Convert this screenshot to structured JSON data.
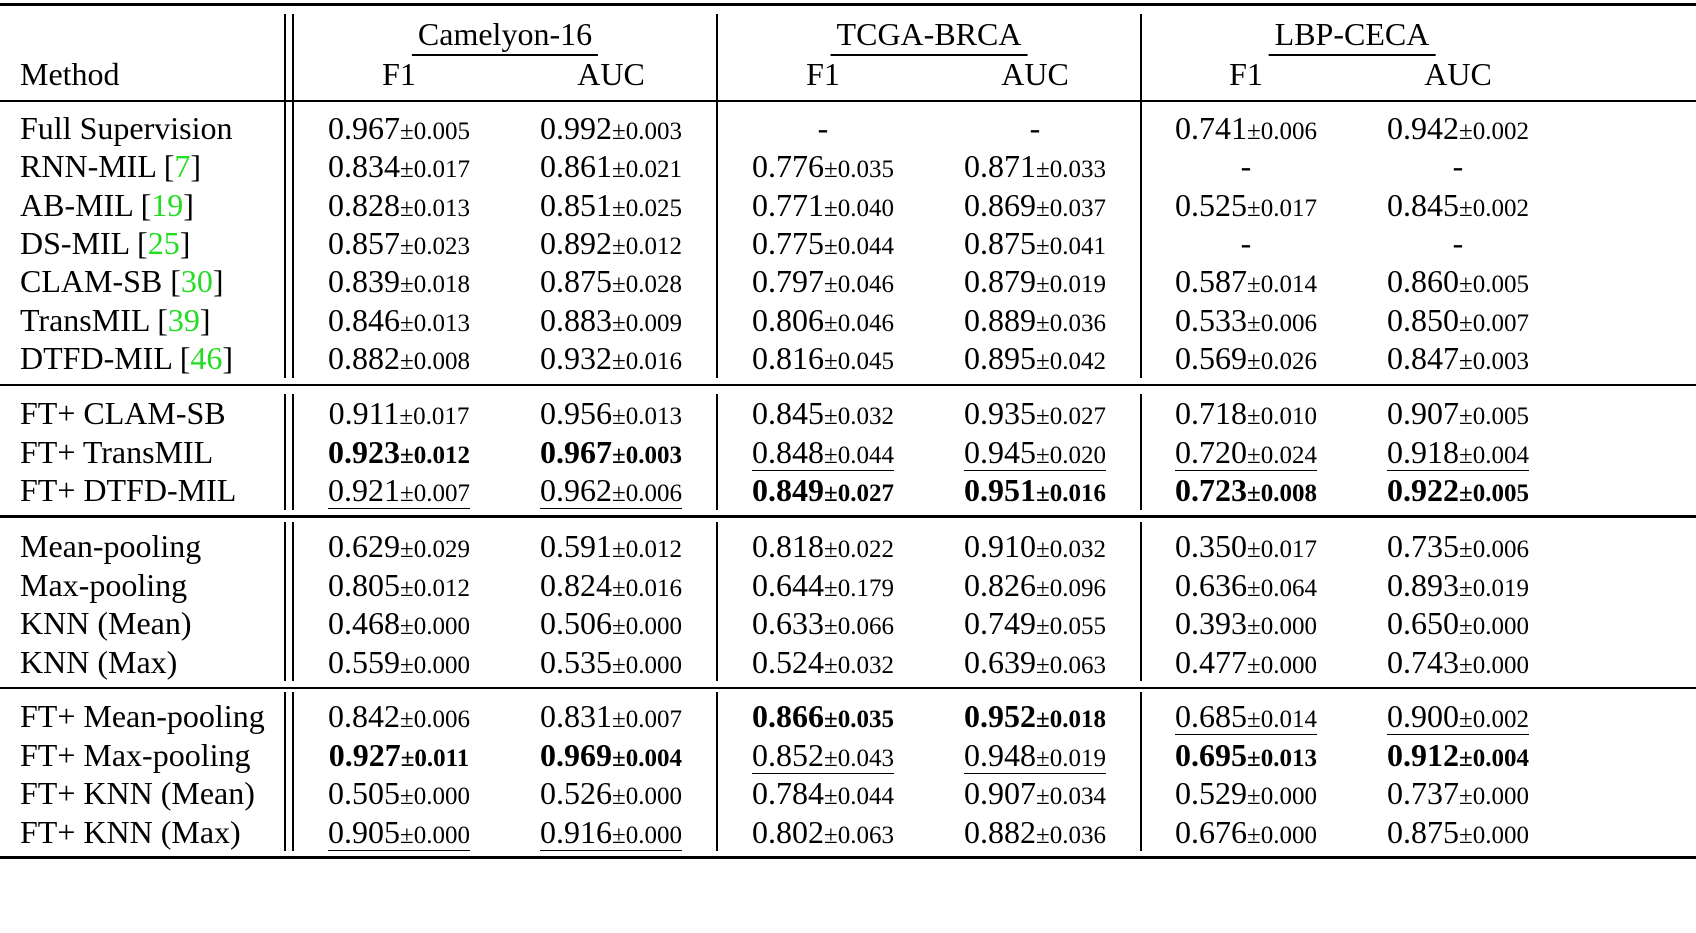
{
  "header": {
    "method_label": "Method",
    "datasets": [
      "Camelyon-16",
      "TCGA-BRCA",
      "LBP-CECA"
    ],
    "metrics": [
      "F1",
      "AUC"
    ]
  },
  "groups": [
    {
      "rows": [
        {
          "method": "Full Supervision",
          "ref": "",
          "cells": [
            {
              "v": "0.967",
              "sd": "±0.005"
            },
            {
              "v": "0.992",
              "sd": "±0.003"
            },
            {
              "v": "-",
              "sd": ""
            },
            {
              "v": "-",
              "sd": ""
            },
            {
              "v": "0.741",
              "sd": "±0.006"
            },
            {
              "v": "0.942",
              "sd": "±0.002"
            }
          ]
        },
        {
          "method": "RNN-MIL [",
          "ref": "7",
          "cells": [
            {
              "v": "0.834",
              "sd": "±0.017"
            },
            {
              "v": "0.861",
              "sd": "±0.021"
            },
            {
              "v": "0.776",
              "sd": "±0.035"
            },
            {
              "v": "0.871",
              "sd": "±0.033"
            },
            {
              "v": "-",
              "sd": ""
            },
            {
              "v": "-",
              "sd": ""
            }
          ]
        },
        {
          "method": "AB-MIL [",
          "ref": "19",
          "cells": [
            {
              "v": "0.828",
              "sd": "±0.013"
            },
            {
              "v": "0.851",
              "sd": "±0.025"
            },
            {
              "v": "0.771",
              "sd": "±0.040"
            },
            {
              "v": "0.869",
              "sd": "±0.037"
            },
            {
              "v": "0.525",
              "sd": "±0.017"
            },
            {
              "v": "0.845",
              "sd": "±0.002"
            }
          ]
        },
        {
          "method": "DS-MIL [",
          "ref": "25",
          "cells": [
            {
              "v": "0.857",
              "sd": "±0.023"
            },
            {
              "v": "0.892",
              "sd": "±0.012"
            },
            {
              "v": "0.775",
              "sd": "±0.044"
            },
            {
              "v": "0.875",
              "sd": "±0.041"
            },
            {
              "v": "-",
              "sd": ""
            },
            {
              "v": "-",
              "sd": ""
            }
          ]
        },
        {
          "method": "CLAM-SB [",
          "ref": "30",
          "cells": [
            {
              "v": "0.839",
              "sd": "±0.018"
            },
            {
              "v": "0.875",
              "sd": "±0.028"
            },
            {
              "v": "0.797",
              "sd": "±0.046"
            },
            {
              "v": "0.879",
              "sd": "±0.019"
            },
            {
              "v": "0.587",
              "sd": "±0.014"
            },
            {
              "v": "0.860",
              "sd": "±0.005"
            }
          ]
        },
        {
          "method": "TransMIL [",
          "ref": "39",
          "cells": [
            {
              "v": "0.846",
              "sd": "±0.013"
            },
            {
              "v": "0.883",
              "sd": "±0.009"
            },
            {
              "v": "0.806",
              "sd": "±0.046"
            },
            {
              "v": "0.889",
              "sd": "±0.036"
            },
            {
              "v": "0.533",
              "sd": "±0.006"
            },
            {
              "v": "0.850",
              "sd": "±0.007"
            }
          ]
        },
        {
          "method": "DTFD-MIL [",
          "ref": "46",
          "cells": [
            {
              "v": "0.882",
              "sd": "±0.008"
            },
            {
              "v": "0.932",
              "sd": "±0.016"
            },
            {
              "v": "0.816",
              "sd": "±0.045"
            },
            {
              "v": "0.895",
              "sd": "±0.042"
            },
            {
              "v": "0.569",
              "sd": "±0.026"
            },
            {
              "v": "0.847",
              "sd": "±0.003"
            }
          ]
        }
      ]
    },
    {
      "rows": [
        {
          "method": "FT+ CLAM-SB",
          "ref": "",
          "cells": [
            {
              "v": "0.911",
              "sd": "±0.017"
            },
            {
              "v": "0.956",
              "sd": "±0.013"
            },
            {
              "v": "0.845",
              "sd": "±0.032"
            },
            {
              "v": "0.935",
              "sd": "±0.027"
            },
            {
              "v": "0.718",
              "sd": "±0.010"
            },
            {
              "v": "0.907",
              "sd": "±0.005"
            }
          ]
        },
        {
          "method": "FT+ TransMIL",
          "ref": "",
          "cells": [
            {
              "v": "0.923",
              "sd": "±0.012",
              "s": "b"
            },
            {
              "v": "0.967",
              "sd": "±0.003",
              "s": "b"
            },
            {
              "v": "0.848",
              "sd": "±0.044",
              "s": "u"
            },
            {
              "v": "0.945",
              "sd": "±0.020",
              "s": "u"
            },
            {
              "v": "0.720",
              "sd": "±0.024",
              "s": "u"
            },
            {
              "v": "0.918",
              "sd": "±0.004",
              "s": "u"
            }
          ]
        },
        {
          "method": "FT+ DTFD-MIL",
          "ref": "",
          "cells": [
            {
              "v": "0.921",
              "sd": "±0.007",
              "s": "u"
            },
            {
              "v": "0.962",
              "sd": "±0.006",
              "s": "u"
            },
            {
              "v": "0.849",
              "sd": "±0.027",
              "s": "b"
            },
            {
              "v": "0.951",
              "sd": "±0.016",
              "s": "b"
            },
            {
              "v": "0.723",
              "sd": "±0.008",
              "s": "b"
            },
            {
              "v": "0.922",
              "sd": "±0.005",
              "s": "b"
            }
          ]
        }
      ]
    },
    {
      "rows": [
        {
          "method": "Mean-pooling",
          "ref": "",
          "cells": [
            {
              "v": "0.629",
              "sd": "±0.029"
            },
            {
              "v": "0.591",
              "sd": "±0.012"
            },
            {
              "v": "0.818",
              "sd": "±0.022"
            },
            {
              "v": "0.910",
              "sd": "±0.032"
            },
            {
              "v": "0.350",
              "sd": "±0.017"
            },
            {
              "v": "0.735",
              "sd": "±0.006"
            }
          ]
        },
        {
          "method": "Max-pooling",
          "ref": "",
          "cells": [
            {
              "v": "0.805",
              "sd": "±0.012"
            },
            {
              "v": "0.824",
              "sd": "±0.016"
            },
            {
              "v": "0.644",
              "sd": "±0.179"
            },
            {
              "v": "0.826",
              "sd": "±0.096"
            },
            {
              "v": "0.636",
              "sd": "±0.064"
            },
            {
              "v": "0.893",
              "sd": "±0.019"
            }
          ]
        },
        {
          "method": "KNN (Mean)",
          "ref": "",
          "cells": [
            {
              "v": "0.468",
              "sd": "±0.000"
            },
            {
              "v": "0.506",
              "sd": "±0.000"
            },
            {
              "v": "0.633",
              "sd": "±0.066"
            },
            {
              "v": "0.749",
              "sd": "±0.055"
            },
            {
              "v": "0.393",
              "sd": "±0.000"
            },
            {
              "v": "0.650",
              "sd": "±0.000"
            }
          ]
        },
        {
          "method": "KNN (Max)",
          "ref": "",
          "cells": [
            {
              "v": "0.559",
              "sd": "±0.000"
            },
            {
              "v": "0.535",
              "sd": "±0.000"
            },
            {
              "v": "0.524",
              "sd": "±0.032"
            },
            {
              "v": "0.639",
              "sd": "±0.063"
            },
            {
              "v": "0.477",
              "sd": "±0.000"
            },
            {
              "v": "0.743",
              "sd": "±0.000"
            }
          ]
        }
      ]
    },
    {
      "rows": [
        {
          "method": "FT+ Mean-pooling",
          "ref": "",
          "cells": [
            {
              "v": "0.842",
              "sd": "±0.006"
            },
            {
              "v": "0.831",
              "sd": "±0.007"
            },
            {
              "v": "0.866",
              "sd": "±0.035",
              "s": "b"
            },
            {
              "v": "0.952",
              "sd": "±0.018",
              "s": "b"
            },
            {
              "v": "0.685",
              "sd": "±0.014",
              "s": "u"
            },
            {
              "v": "0.900",
              "sd": "±0.002",
              "s": "u"
            }
          ]
        },
        {
          "method": "FT+ Max-pooling",
          "ref": "",
          "cells": [
            {
              "v": "0.927",
              "sd": "±0.011",
              "s": "b"
            },
            {
              "v": "0.969",
              "sd": "±0.004",
              "s": "b"
            },
            {
              "v": "0.852",
              "sd": "±0.043",
              "s": "u"
            },
            {
              "v": "0.948",
              "sd": "±0.019",
              "s": "u"
            },
            {
              "v": "0.695",
              "sd": "±0.013",
              "s": "b"
            },
            {
              "v": "0.912",
              "sd": "±0.004",
              "s": "b"
            }
          ]
        },
        {
          "method": "FT+ KNN (Mean)",
          "ref": "",
          "cells": [
            {
              "v": "0.505",
              "sd": "±0.000"
            },
            {
              "v": "0.526",
              "sd": "±0.000"
            },
            {
              "v": "0.784",
              "sd": "±0.044"
            },
            {
              "v": "0.907",
              "sd": "±0.034"
            },
            {
              "v": "0.529",
              "sd": "±0.000"
            },
            {
              "v": "0.737",
              "sd": "±0.000"
            }
          ]
        },
        {
          "method": "FT+ KNN (Max)",
          "ref": "",
          "cells": [
            {
              "v": "0.905",
              "sd": "±0.000",
              "s": "u"
            },
            {
              "v": "0.916",
              "sd": "±0.000",
              "s": "u"
            },
            {
              "v": "0.802",
              "sd": "±0.063"
            },
            {
              "v": "0.882",
              "sd": "±0.036"
            },
            {
              "v": "0.676",
              "sd": "±0.000"
            },
            {
              "v": "0.875",
              "sd": "±0.000"
            }
          ]
        }
      ]
    }
  ]
}
